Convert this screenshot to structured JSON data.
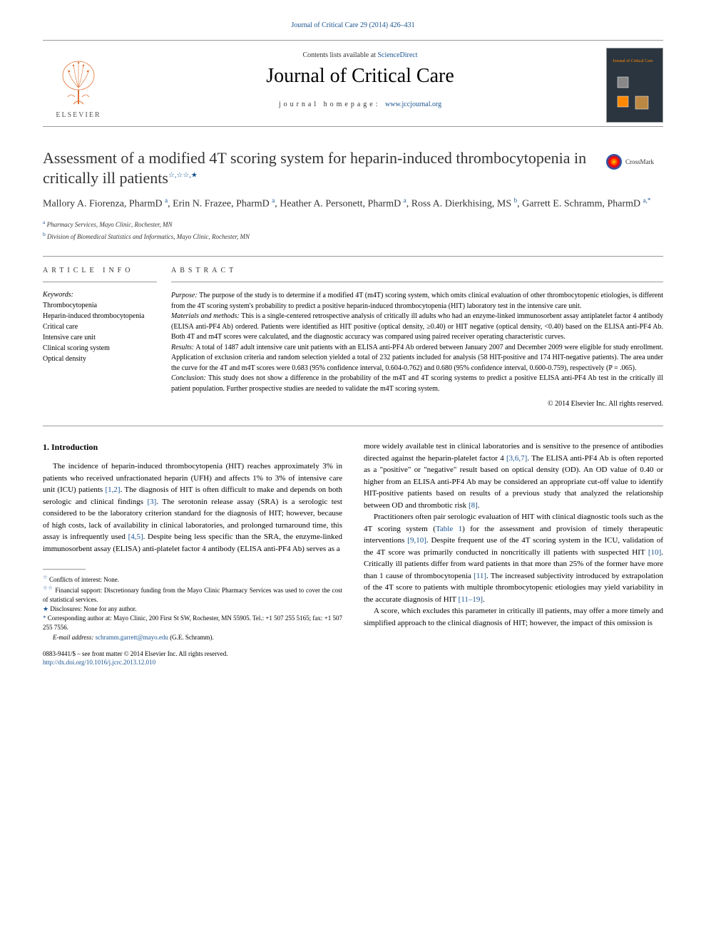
{
  "header": {
    "citation_link": "Journal of Critical Care 29 (2014) 426–431",
    "contents_text": "Contents lists available at ",
    "contents_link": "ScienceDirect",
    "journal_title": "Journal of Critical Care",
    "homepage_label": "journal homepage: ",
    "homepage_url": "www.jccjournal.org",
    "publisher": "ELSEVIER",
    "cover_title": "Journal of Critical Care"
  },
  "article": {
    "title": "Assessment of a modified 4T scoring system for heparin-induced thrombocytopenia in critically ill patients",
    "title_markers": "☆,☆☆,★",
    "crossmark": "CrossMark",
    "authors_html": "Mallory A. Fiorenza, PharmD <sup><a>a</a></sup>, Erin N. Frazee, PharmD <sup><a>a</a></sup>, Heather A. Personett, PharmD <sup><a>a</a></sup>, Ross A. Dierkhising, MS <sup><a>b</a></sup>, Garrett E. Schramm, PharmD <sup><a>a,</a></sup><sup><a>*</a></sup>",
    "affiliations": {
      "a": "Pharmacy Services, Mayo Clinic, Rochester, MN",
      "b": "Division of Biomedical Statistics and Informatics, Mayo Clinic, Rochester, MN"
    }
  },
  "info": {
    "heading": "article info",
    "keywords_label": "Keywords:",
    "keywords": [
      "Thrombocytopenia",
      "Heparin-induced thrombocytopenia",
      "Critical care",
      "Intensive care unit",
      "Clinical scoring system",
      "Optical density"
    ]
  },
  "abstract": {
    "heading": "ABSTRACT",
    "purpose_label": "Purpose:",
    "purpose": "The purpose of the study is to determine if a modified 4T (m4T) scoring system, which omits clinical evaluation of other thrombocytopenic etiologies, is different from the 4T scoring system's probability to predict a positive heparin-induced thrombocytopenia (HIT) laboratory test in the intensive care unit.",
    "methods_label": "Materials and methods:",
    "methods": "This is a single-centered retrospective analysis of critically ill adults who had an enzyme-linked immunosorbent assay antiplatelet factor 4 antibody (ELISA anti-PF4 Ab) ordered. Patients were identified as HIT positive (optical density, ≥0.40) or HIT negative (optical density, <0.40) based on the ELISA anti-PF4 Ab. Both 4T and m4T scores were calculated, and the diagnostic accuracy was compared using paired receiver operating characteristic curves.",
    "results_label": "Results:",
    "results": "A total of 1487 adult intensive care unit patients with an ELISA anti-PF4 Ab ordered between January 2007 and December 2009 were eligible for study enrollment. Application of exclusion criteria and random selection yielded a total of 232 patients included for analysis (58 HIT-positive and 174 HIT-negative patients). The area under the curve for the 4T and m4T scores were 0.683 (95% confidence interval, 0.604-0.762) and 0.680 (95% confidence interval, 0.600-0.759), respectively (P = .065).",
    "conclusion_label": "Conclusion:",
    "conclusion": "This study does not show a difference in the probability of the m4T and 4T scoring systems to predict a positive ELISA anti-PF4 Ab test in the critically ill patient population. Further prospective studies are needed to validate the m4T scoring system.",
    "copyright": "© 2014 Elsevier Inc. All rights reserved."
  },
  "body": {
    "intro_heading": "1. Introduction",
    "left_p1": "The incidence of heparin-induced thrombocytopenia (HIT) reaches approximately 3% in patients who received unfractionated heparin (UFH) and affects 1% to 3% of intensive care unit (ICU) patients [1,2]. The diagnosis of HIT is often difficult to make and depends on both serologic and clinical findings [3]. The serotonin release assay (SRA) is a serologic test considered to be the laboratory criterion standard for the diagnosis of HIT; however, because of high costs, lack of availability in clinical laboratories, and prolonged turnaround time, this assay is infrequently used [4,5]. Despite being less specific than the SRA, the enzyme-linked immunosorbent assay (ELISA) anti-platelet factor 4 antibody (ELISA anti-PF4 Ab) serves as a",
    "right_p1": "more widely available test in clinical laboratories and is sensitive to the presence of antibodies directed against the heparin-platelet factor 4 [3,6,7]. The ELISA anti-PF4 Ab is often reported as a \"positive\" or \"negative\" result based on optical density (OD). An OD value of 0.40 or higher from an ELISA anti-PF4 Ab may be considered an appropriate cut-off value to identify HIT-positive patients based on results of a previous study that analyzed the relationship between OD and thrombotic risk [8].",
    "right_p2": "Practitioners often pair serologic evaluation of HIT with clinical diagnostic tools such as the 4T scoring system (Table 1) for the assessment and provision of timely therapeutic interventions [9,10]. Despite frequent use of the 4T scoring system in the ICU, validation of the 4T score was primarily conducted in noncritically ill patients with suspected HIT [10]. Critically ill patients differ from ward patients in that more than 25% of the former have more than 1 cause of thrombocytopenia [11]. The increased subjectivity introduced by extrapolation of the 4T score to patients with multiple thrombocytopenic etiologies may yield variability in the accurate diagnosis of HIT [11–19].",
    "right_p3": "A score, which excludes this parameter in critically ill patients, may offer a more timely and simplified approach to the clinical diagnosis of HIT; however, the impact of this omission is"
  },
  "footnotes": {
    "f1_sym": "☆",
    "f1": "Conflicts of interest: None.",
    "f2_sym": "☆☆",
    "f2": "Financial support: Discretionary funding from the Mayo Clinic Pharmacy Services was used to cover the cost of statistical services.",
    "f3_sym": "★",
    "f3": "Disclosures: None for any author.",
    "f4_sym": "*",
    "f4": "Corresponding author at: Mayo Clinic, 200 First St SW, Rochester, MN 55905. Tel.: +1 507 255 5165; fax: +1 507 255 7556.",
    "email_label": "E-mail address:",
    "email": "schramm.garrett@mayo.edu",
    "email_suffix": "(G.E. Schramm)."
  },
  "footer": {
    "issn": "0883-9441/$ – see front matter © 2014 Elsevier Inc. All rights reserved.",
    "doi": "http://dx.doi.org/10.1016/j.jcrc.2013.12.010"
  },
  "colors": {
    "link": "#1a5490",
    "text": "#000000",
    "rule": "#999999"
  }
}
